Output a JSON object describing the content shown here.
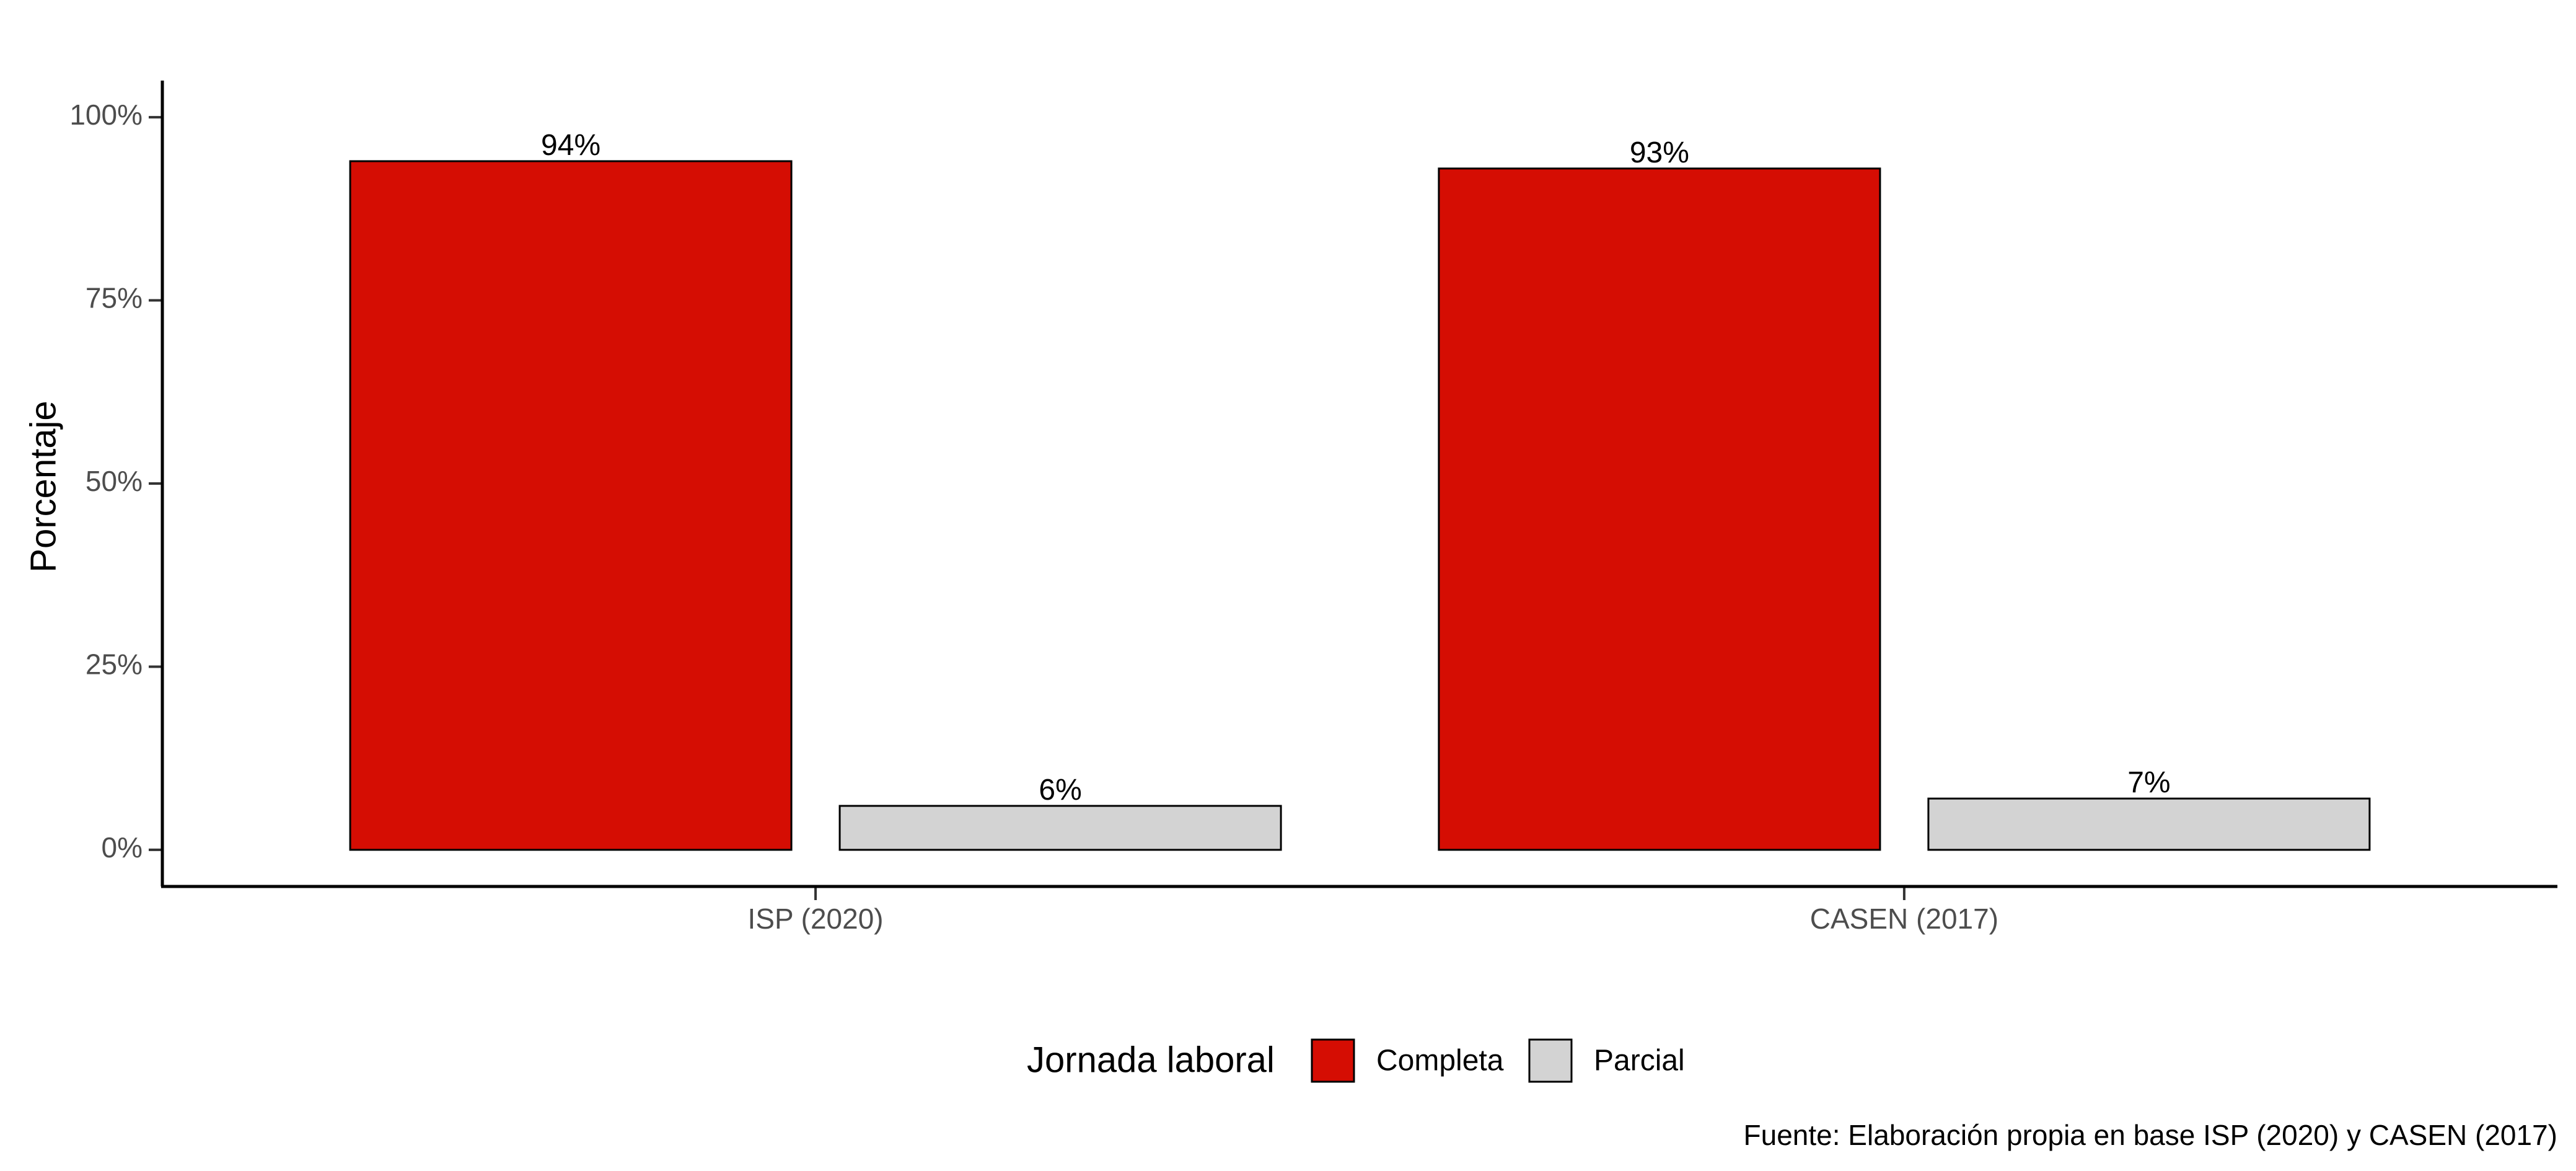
{
  "chart_data": {
    "type": "bar",
    "categories": [
      "ISP (2020)",
      "CASEN (2017)"
    ],
    "series": [
      {
        "name": "Completa",
        "values": [
          94,
          93
        ],
        "color": "#d50d03",
        "labels": [
          "94%",
          "93%"
        ]
      },
      {
        "name": "Parcial",
        "values": [
          6,
          7
        ],
        "color": "#d3d3d3",
        "labels": [
          "6%",
          "7%"
        ]
      }
    ],
    "ylabel": "Porcentaje",
    "xlabel": "",
    "ylim": [
      -5,
      105
    ],
    "yticks": [
      0,
      25,
      50,
      75,
      100
    ],
    "ytick_labels": [
      "0%",
      "25%",
      "50%",
      "75%",
      "100%"
    ],
    "legend": {
      "title": "Jornada laboral",
      "position": "bottom"
    },
    "caption": "Fuente: Elaboración propia en base ISP (2020) y CASEN (2017)",
    "grid": false
  }
}
